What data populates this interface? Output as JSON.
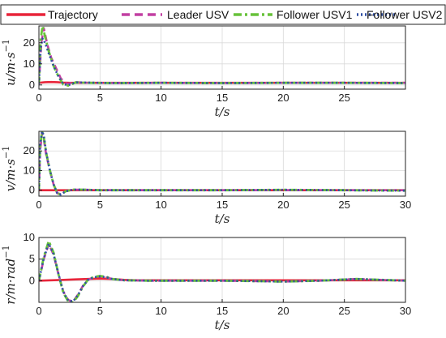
{
  "legend": {
    "entries": [
      {
        "label": "Trajectory",
        "color": "#e8243a",
        "style": "solid"
      },
      {
        "label": "Leader USV",
        "color": "#c23fa2",
        "style": "dashed"
      },
      {
        "label": "Follower USV1",
        "color": "#67c23a",
        "style": "dashdot"
      },
      {
        "label": "Follower USV2",
        "color": "#2f4ea3",
        "style": "dotted"
      }
    ]
  },
  "chart_data": [
    {
      "type": "line",
      "ylabel": "u/m·s",
      "ylabel_sup": "−1",
      "xlabel": "t/s",
      "xlim": [
        0,
        30
      ],
      "ylim": [
        -2,
        28
      ],
      "xticks": [
        0,
        5,
        10,
        15,
        20,
        25
      ],
      "xtick_labels": [
        "0",
        "5",
        "10",
        "15",
        "20",
        "25"
      ],
      "yticks": [
        0,
        10,
        20
      ],
      "ytick_labels": [
        "0",
        "10",
        "20"
      ],
      "grid": true,
      "series": [
        {
          "name": "Trajectory",
          "x": [
            0,
            0.5,
            1.0,
            1.5,
            2.0,
            2.5,
            3.0,
            5,
            10,
            15,
            20,
            25,
            30
          ],
          "y": [
            1.0,
            1.3,
            1.4,
            1.3,
            1.1,
            1.0,
            1.0,
            1.0,
            1.0,
            1.0,
            1.0,
            1.0,
            1.0
          ]
        },
        {
          "name": "Leader USV",
          "x": [
            0,
            0.2,
            0.4,
            0.7,
            1.0,
            1.4,
            1.8,
            2.3,
            3.0,
            4.0,
            6,
            10,
            15,
            20,
            25,
            30
          ],
          "y": [
            0.5,
            20,
            27,
            19,
            13,
            8,
            3,
            0.5,
            1.3,
            1.0,
            0.9,
            1.0,
            0.9,
            1.0,
            1.0,
            1.0
          ]
        },
        {
          "name": "Follower USV1",
          "x": [
            0,
            0.15,
            0.3,
            0.5,
            0.8,
            1.2,
            1.6,
            2.0,
            2.4,
            3.0,
            4.0,
            6,
            10,
            15,
            20,
            25,
            30
          ],
          "y": [
            0.5,
            22,
            28,
            23,
            16,
            9,
            4,
            0.2,
            -0.3,
            1.2,
            1.0,
            0.9,
            1.0,
            0.9,
            1.0,
            1.0,
            0.9
          ]
        },
        {
          "name": "Follower USV2",
          "x": [
            0,
            0.15,
            0.3,
            0.5,
            0.8,
            1.2,
            1.6,
            2.0,
            2.4,
            3.0,
            4.0,
            6,
            10,
            15,
            20,
            25,
            30
          ],
          "y": [
            0.5,
            18,
            22,
            20,
            15,
            9,
            4,
            0.4,
            -0.1,
            1.2,
            1.1,
            0.9,
            1.0,
            0.9,
            1.0,
            1.0,
            0.9
          ]
        }
      ]
    },
    {
      "type": "line",
      "ylabel": "v/m·s",
      "ylabel_sup": "−1",
      "xlabel": "t/s",
      "xlim": [
        0,
        30
      ],
      "ylim": [
        -3,
        30
      ],
      "xticks": [
        0,
        5,
        10,
        15,
        20,
        25,
        30
      ],
      "xtick_labels": [
        "0",
        "5",
        "10",
        "15",
        "20",
        "25",
        "30"
      ],
      "yticks": [
        0,
        10,
        20
      ],
      "ytick_labels": [
        "0",
        "10",
        "20"
      ],
      "grid": true,
      "series": [
        {
          "name": "Trajectory",
          "x": [
            0,
            30
          ],
          "y": [
            0,
            0
          ]
        },
        {
          "name": "Leader USV",
          "x": [
            0,
            0.1,
            0.25,
            0.4,
            0.6,
            0.9,
            1.2,
            1.5,
            1.8,
            2.2,
            2.8,
            3.5,
            5,
            10,
            15,
            20,
            25,
            30
          ],
          "y": [
            0,
            20,
            29,
            26,
            18,
            10,
            3,
            -1.5,
            -2,
            -0.5,
            0.3,
            0.3,
            0,
            0,
            0,
            0,
            0,
            0
          ]
        },
        {
          "name": "Follower USV1",
          "x": [
            0,
            0.1,
            0.25,
            0.4,
            0.6,
            0.9,
            1.2,
            1.5,
            1.8,
            2.2,
            2.8,
            3.5,
            5,
            10,
            15,
            20,
            25,
            30
          ],
          "y": [
            0,
            22,
            30,
            27,
            19,
            10,
            3,
            -1.5,
            -2.2,
            -0.5,
            0.3,
            0.3,
            0,
            0,
            0,
            0.2,
            0,
            -0.2
          ]
        },
        {
          "name": "Follower USV2",
          "x": [
            0,
            0.1,
            0.25,
            0.4,
            0.6,
            0.9,
            1.2,
            1.5,
            1.8,
            2.2,
            2.8,
            3.5,
            5,
            10,
            15,
            20,
            25,
            30
          ],
          "y": [
            0,
            23,
            30,
            28,
            19,
            10,
            3,
            -1.5,
            -2.2,
            -0.5,
            0.3,
            0.3,
            0,
            0,
            0,
            0.2,
            0,
            -0.2
          ]
        }
      ]
    },
    {
      "type": "line",
      "ylabel": "r/m·rad",
      "ylabel_sup": "−1",
      "xlabel": "t/s",
      "xlim": [
        0,
        30
      ],
      "ylim": [
        -5,
        10
      ],
      "xticks": [
        0,
        5,
        10,
        15,
        20,
        25,
        30
      ],
      "xtick_labels": [
        "0",
        "5",
        "10",
        "15",
        "20",
        "25",
        "30"
      ],
      "yticks": [
        -5,
        0,
        5,
        10
      ],
      "ytick_labels": [
        "",
        "0",
        "5",
        "10"
      ],
      "grid": true,
      "series": [
        {
          "name": "Trajectory",
          "x": [
            0,
            1,
            2,
            3,
            4,
            5,
            6,
            7,
            8,
            30
          ],
          "y": [
            0,
            0.1,
            0.2,
            0.3,
            0.4,
            0.5,
            0.4,
            0.2,
            0.1,
            0.1
          ]
        },
        {
          "name": "Leader USV",
          "x": [
            0,
            0.4,
            0.8,
            1.2,
            1.6,
            2.0,
            2.4,
            2.8,
            3.2,
            3.6,
            4.0,
            4.5,
            5.0,
            5.5,
            6.0,
            7.0,
            9,
            12,
            15,
            18,
            20,
            23,
            26,
            28,
            30
          ],
          "y": [
            0,
            5,
            8.5,
            6,
            1.5,
            -2.5,
            -4.5,
            -4.8,
            -3.2,
            -1.2,
            0.2,
            0.8,
            1.0,
            0.8,
            0.4,
            0.1,
            0,
            0,
            0,
            -0.1,
            -0.2,
            0,
            0.4,
            0.2,
            0
          ]
        },
        {
          "name": "Follower USV1",
          "x": [
            0,
            0.4,
            0.8,
            1.2,
            1.6,
            2.0,
            2.4,
            2.8,
            3.2,
            3.6,
            4.0,
            4.5,
            5.0,
            5.5,
            6.0,
            7.0,
            9,
            12,
            15,
            18,
            20,
            23,
            26,
            28,
            30
          ],
          "y": [
            0,
            5.5,
            9.2,
            6.5,
            1.5,
            -2.8,
            -4.8,
            -5,
            -3.5,
            -1.4,
            0.2,
            0.9,
            1.1,
            0.9,
            0.4,
            0.1,
            0,
            0,
            0,
            -0.1,
            -0.2,
            0,
            0.4,
            0.2,
            0
          ]
        },
        {
          "name": "Follower USV2",
          "x": [
            0,
            0.4,
            0.8,
            1.2,
            1.6,
            2.0,
            2.4,
            2.8,
            3.2,
            3.6,
            4.0,
            4.5,
            5.0,
            5.5,
            6.0,
            7.0,
            9,
            12,
            15,
            18,
            20,
            23,
            26,
            28,
            30
          ],
          "y": [
            0,
            5.2,
            8.6,
            6.2,
            1.6,
            -2.6,
            -4.6,
            -4.8,
            -3.3,
            -1.3,
            0.2,
            0.8,
            1.0,
            0.8,
            0.4,
            0.1,
            0,
            0,
            0,
            -0.1,
            -0.2,
            0,
            0.4,
            0.2,
            0
          ]
        }
      ]
    }
  ]
}
